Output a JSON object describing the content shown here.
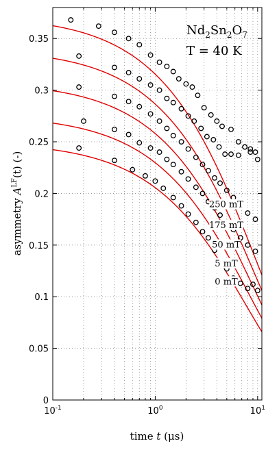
{
  "chart_data": {
    "type": "scatter",
    "title": "",
    "xlabel": "time t (μs)",
    "xlabel_parts": {
      "prefix": "time ",
      "var": "t",
      "unit": " (μs)"
    },
    "ylabel_parts": {
      "prefix": "asymmetry ",
      "var": "A",
      "sup": "LF",
      "arg": "(t)",
      "suffix": " (-)"
    },
    "xscale": "log",
    "xlim": [
      0.1,
      11
    ],
    "ylim": [
      0,
      0.38
    ],
    "xticks": [
      0.1,
      1,
      10
    ],
    "xtick_labels": [
      {
        "base": "10",
        "exp": "-1"
      },
      {
        "base": "10",
        "exp": "0"
      },
      {
        "base": "10",
        "exp": "1"
      }
    ],
    "yticks": [
      0,
      0.05,
      0.1,
      0.15,
      0.2,
      0.25,
      0.3,
      0.35
    ],
    "ytick_labels": [
      "0",
      "0.05",
      "0.1",
      "0.15",
      "0.2",
      "0.25",
      "0.3",
      "0.35"
    ],
    "grid": true,
    "sample_label": {
      "el1": "Nd",
      "n1": "2",
      "el2": "Sn",
      "n2": "2",
      "el3": "O",
      "n3": "7"
    },
    "temperature_label": "T = 40 K",
    "colors": {
      "fit": "#e00000",
      "points": "#000000",
      "grid": "#888888"
    },
    "series": [
      {
        "name": "250 mT",
        "fit": {
          "A0": 0.372,
          "lambda": 0.105,
          "beta": 0.8
        },
        "x": [
          0.15,
          0.28,
          0.4,
          0.55,
          0.7,
          0.9,
          1.1,
          1.3,
          1.5,
          1.7,
          2.0,
          2.3,
          2.6,
          3.0,
          3.5,
          4.0,
          4.5,
          5.5,
          6.5,
          7.5,
          8.5,
          9.5
        ],
        "y": [
          0.368,
          0.362,
          0.356,
          0.35,
          0.344,
          0.334,
          0.327,
          0.323,
          0.318,
          0.311,
          0.306,
          0.303,
          0.295,
          0.283,
          0.276,
          0.27,
          0.265,
          0.262,
          0.25,
          0.245,
          0.243,
          0.24
        ]
      },
      {
        "name": "175 mT",
        "fit": {
          "A0": 0.34,
          "lambda": 0.11,
          "beta": 0.8
        },
        "x": [
          0.18,
          0.4,
          0.55,
          0.7,
          0.9,
          1.1,
          1.3,
          1.5,
          1.8,
          2.1,
          2.4,
          2.8,
          3.2,
          3.7,
          4.2,
          4.8,
          5.5,
          6.5,
          7.5,
          8.5,
          10
        ],
        "y": [
          0.333,
          0.322,
          0.317,
          0.311,
          0.305,
          0.3,
          0.292,
          0.288,
          0.282,
          0.275,
          0.27,
          0.263,
          0.255,
          0.252,
          0.245,
          0.238,
          0.238,
          0.237,
          0.245,
          0.24,
          0.233
        ]
      },
      {
        "name": "50 mT",
        "fit": {
          "A0": 0.308,
          "lambda": 0.115,
          "beta": 0.8
        },
        "x": [
          0.18,
          0.4,
          0.55,
          0.7,
          0.9,
          1.1,
          1.3,
          1.5,
          1.8,
          2.1,
          2.5,
          2.9,
          3.3,
          3.8,
          4.3,
          5.0,
          5.8,
          6.8,
          8.0,
          9.5
        ],
        "y": [
          0.303,
          0.294,
          0.289,
          0.284,
          0.277,
          0.27,
          0.263,
          0.256,
          0.25,
          0.243,
          0.235,
          0.228,
          0.222,
          0.215,
          0.21,
          0.203,
          0.196,
          0.188,
          0.181,
          0.175
        ]
      },
      {
        "name": "5 mT",
        "fit": {
          "A0": 0.276,
          "lambda": 0.12,
          "beta": 0.8
        },
        "x": [
          0.2,
          0.4,
          0.55,
          0.7,
          0.9,
          1.1,
          1.3,
          1.5,
          1.8,
          2.1,
          2.5,
          2.9,
          3.3,
          3.8,
          4.3,
          5.0,
          5.8,
          6.8,
          8.0,
          9.5
        ],
        "y": [
          0.27,
          0.262,
          0.257,
          0.249,
          0.244,
          0.24,
          0.233,
          0.228,
          0.221,
          0.214,
          0.206,
          0.2,
          0.192,
          0.186,
          0.179,
          0.172,
          0.165,
          0.157,
          0.15,
          0.144
        ]
      },
      {
        "name": "0 mT",
        "fit": {
          "A0": 0.25,
          "lambda": 0.13,
          "beta": 0.8
        },
        "x": [
          0.18,
          0.4,
          0.6,
          0.8,
          1.0,
          1.2,
          1.5,
          1.8,
          2.1,
          2.5,
          2.9,
          3.3,
          3.8,
          4.3,
          5.0,
          5.8,
          6.8,
          8.0,
          9.0,
          10
        ],
        "y": [
          0.244,
          0.232,
          0.223,
          0.217,
          0.212,
          0.205,
          0.196,
          0.188,
          0.18,
          0.172,
          0.163,
          0.157,
          0.145,
          0.13,
          0.127,
          0.118,
          0.113,
          0.108,
          0.112,
          0.106
        ]
      }
    ]
  }
}
